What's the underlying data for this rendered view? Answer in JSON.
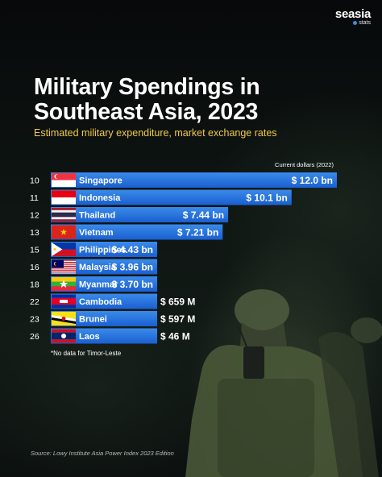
{
  "brand": {
    "name": "seasia",
    "sub": "stats"
  },
  "title": "Military Spendings in Southeast Asia, 2023",
  "subtitle": "Estimated military expenditure, market exchange rates",
  "unit_note": "Current dollars (2022)",
  "footnote": "*No data for Timor-Leste",
  "source": "Source: Lowy Institute Asia Power Index 2023 Edition",
  "colors": {
    "bar_top": "#2f7fe0",
    "bar_bottom": "#1a5fd0",
    "subtitle": "#f2c94c",
    "text": "#ffffff"
  },
  "chart_data": {
    "type": "bar",
    "orientation": "horizontal",
    "title": "Military Spendings in Southeast Asia, 2023",
    "subtitle": "Estimated military expenditure, market exchange rates",
    "unit": "Current dollars (2022)",
    "categories": [
      "Singapore",
      "Indonesia",
      "Thailand",
      "Vietnam",
      "Philippines",
      "Malaysia",
      "Myanmar",
      "Cambodia",
      "Brunei",
      "Laos"
    ],
    "ranks": [
      "10",
      "11",
      "12",
      "13",
      "15",
      "16",
      "18",
      "22",
      "23",
      "26"
    ],
    "values_usd_bn": [
      12.0,
      10.1,
      7.44,
      7.21,
      4.43,
      3.96,
      3.7,
      0.659,
      0.597,
      0.046
    ],
    "value_labels": [
      "$ 12.0 bn",
      "$ 10.1 bn",
      "$ 7.44 bn",
      "$ 7.21 bn",
      "$ 4.43 bn",
      "$ 3.96 bn",
      "$ 3.70 bn",
      "$ 659 M",
      "$ 597 M",
      "$ 46 M"
    ],
    "flags": [
      "singapore-flag-icon",
      "indonesia-flag-icon",
      "thailand-flag-icon",
      "vietnam-flag-icon",
      "philippines-flag-icon",
      "malaysia-flag-icon",
      "myanmar-flag-icon",
      "cambodia-flag-icon",
      "brunei-flag-icon",
      "laos-flag-icon"
    ]
  }
}
